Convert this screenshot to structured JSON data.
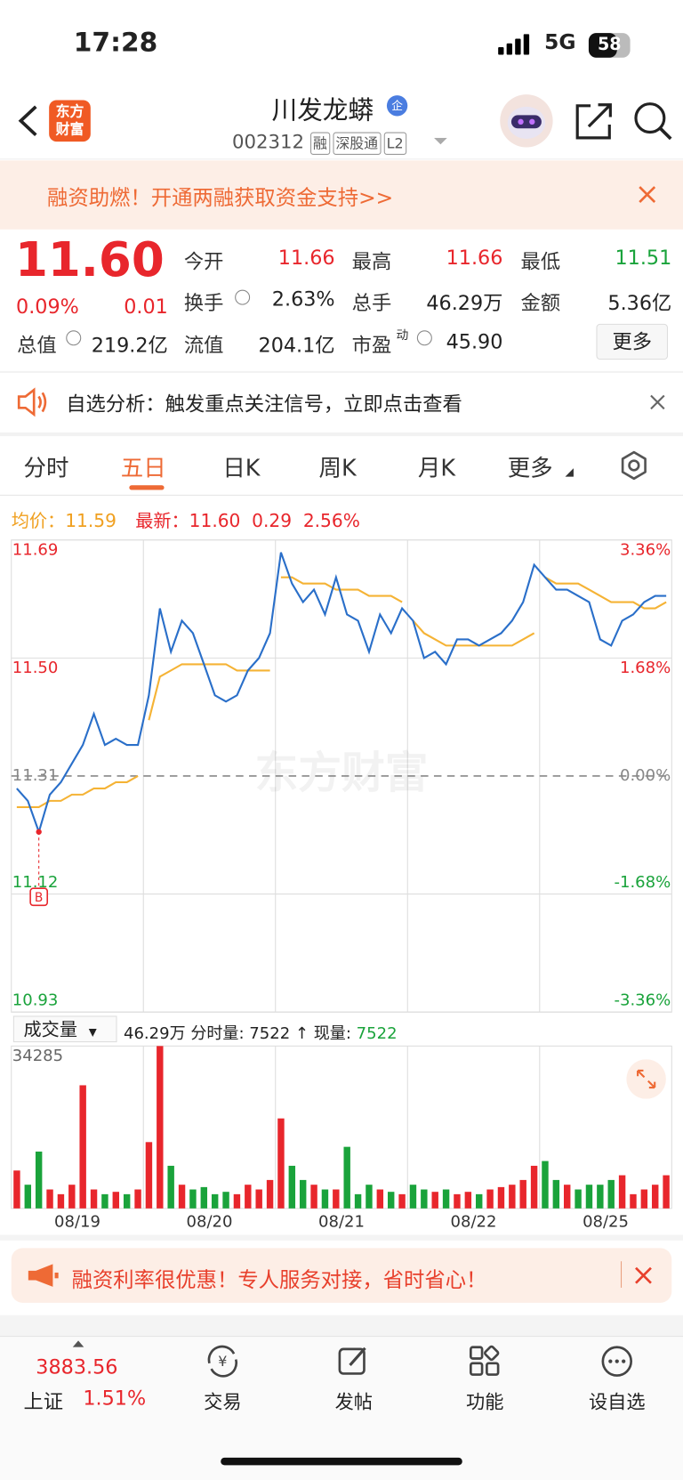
{
  "status": {
    "time": "17:28",
    "network": "5G",
    "battery": "58"
  },
  "header": {
    "logo": [
      "东方",
      "财富"
    ],
    "title": "川发龙蟒",
    "badge": "企",
    "code": "002312",
    "tags": [
      "融",
      "深股通",
      "L2"
    ]
  },
  "promo": {
    "text": "融资助燃！开通两融获取资金支持>>"
  },
  "quote": {
    "price": "11.60",
    "change_pct": "0.09%",
    "change": "0.01",
    "more": "更多",
    "fields": [
      {
        "label": "今开",
        "value": "11.66"
      },
      {
        "label": "最高",
        "value": "11.66"
      },
      {
        "label": "最低",
        "value": "11.51"
      },
      {
        "label": "换手",
        "value": "2.63%"
      },
      {
        "label": "总手",
        "value": "46.29万"
      },
      {
        "label": "金额",
        "value": "5.36亿"
      },
      {
        "label": "总值",
        "value": "219.2亿"
      },
      {
        "label": "流值",
        "value": "204.1亿"
      },
      {
        "label": "市盈",
        "sup": "动",
        "value": "45.90"
      }
    ]
  },
  "notice": {
    "text": "自选分析：触发重点关注信号，立即点击查看"
  },
  "tabs": {
    "items": [
      "分时",
      "五日",
      "日K",
      "周K",
      "月K",
      "更多"
    ],
    "active": 1
  },
  "chart_data": {
    "type": "line",
    "info": {
      "avg_label": "均价：",
      "avg": "11.59",
      "latest_label": "最新：",
      "latest": "11.60",
      "change": "0.29",
      "pct": "2.56%"
    },
    "watermark": "东方财富",
    "ylim": [
      10.93,
      11.69
    ],
    "yticks": [
      11.69,
      {
        "value": 11.5,
        "label": "11.50"
      },
      11.31,
      11.12,
      10.93
    ],
    "baseline": 11.31,
    "y2lim": [
      -3.36,
      3.36
    ],
    "y2ticks": [
      {
        "value": 3.36,
        "label": "3.36%"
      },
      {
        "value": 1.68,
        "label": "1.68%"
      },
      {
        "value": 0,
        "label": "0.00%"
      },
      {
        "value": -1.68,
        "label": "-1.68%"
      },
      {
        "value": -3.36,
        "label": "-3.36%"
      }
    ],
    "price_color": "#2a6fc9",
    "avg_color": "#f5b335",
    "price": [
      11.29,
      11.27,
      11.22,
      11.28,
      11.3,
      11.33,
      11.36,
      11.41,
      11.36,
      11.37,
      11.36,
      11.36,
      11.44,
      11.58,
      11.51,
      11.56,
      11.54,
      11.49,
      11.44,
      11.43,
      11.44,
      11.48,
      11.5,
      11.54,
      11.67,
      11.62,
      11.59,
      11.61,
      11.57,
      11.63,
      11.57,
      11.56,
      11.51,
      11.57,
      11.54,
      11.58,
      11.56,
      11.5,
      11.51,
      11.49,
      11.53,
      11.53,
      11.52,
      11.53,
      11.54,
      11.56,
      11.59,
      11.65,
      11.63,
      11.61,
      11.61,
      11.6,
      11.59,
      11.53,
      11.52,
      11.56,
      11.57,
      11.59,
      11.6,
      11.6
    ],
    "avg": [
      11.26,
      11.26,
      11.26,
      11.27,
      11.27,
      11.28,
      11.28,
      11.29,
      11.29,
      11.3,
      11.3,
      11.31,
      11.4,
      11.47,
      11.48,
      11.49,
      11.49,
      11.49,
      11.49,
      11.49,
      11.48,
      11.48,
      11.48,
      11.48,
      11.63,
      11.63,
      11.62,
      11.62,
      11.62,
      11.61,
      11.61,
      11.61,
      11.6,
      11.6,
      11.6,
      11.59,
      11.56,
      11.54,
      11.53,
      11.52,
      11.52,
      11.52,
      11.52,
      11.52,
      11.52,
      11.52,
      11.53,
      11.54,
      11.63,
      11.62,
      11.62,
      11.62,
      11.61,
      11.6,
      11.59,
      11.59,
      11.59,
      11.58,
      11.58,
      11.59
    ],
    "marker": {
      "label": "B",
      "index": 2
    },
    "days": [
      "08/19",
      "08/20",
      "08/21",
      "08/22",
      "08/25"
    ],
    "volume": {
      "selector": "成交量",
      "total": "46.29万",
      "tick_label": "分时量:",
      "tick_value": "7522",
      "arrow": "↑",
      "now_label": "现量:",
      "now_value": "7522",
      "ylim": [
        0,
        34285
      ],
      "yticks": [
        34285
      ],
      "up_color": "#e8262c",
      "down_color": "#1aa33b",
      "values": [
        8000,
        5000,
        12000,
        4000,
        3000,
        5000,
        26000,
        4000,
        3000,
        3500,
        3000,
        4000,
        14000,
        34285,
        9000,
        5000,
        4000,
        4500,
        3000,
        3500,
        3000,
        5000,
        4000,
        6000,
        19000,
        9000,
        6000,
        5000,
        4000,
        4000,
        13000,
        3000,
        5000,
        4000,
        3500,
        3000,
        5000,
        4000,
        3500,
        4000,
        3000,
        3500,
        3000,
        4000,
        4500,
        5000,
        6000,
        9000,
        10000,
        6000,
        5000,
        4000,
        5000,
        5000,
        6000,
        7000,
        3000,
        4000,
        5000,
        7000
      ]
    }
  },
  "promo2": {
    "text": "融资利率很优惠！专人服务对接，省时省心！"
  },
  "bottom": {
    "index": "3883.56",
    "index_name": "上证",
    "index_pct": "1.51%",
    "nav": [
      "交易",
      "发帖",
      "功能",
      "设自选"
    ]
  }
}
